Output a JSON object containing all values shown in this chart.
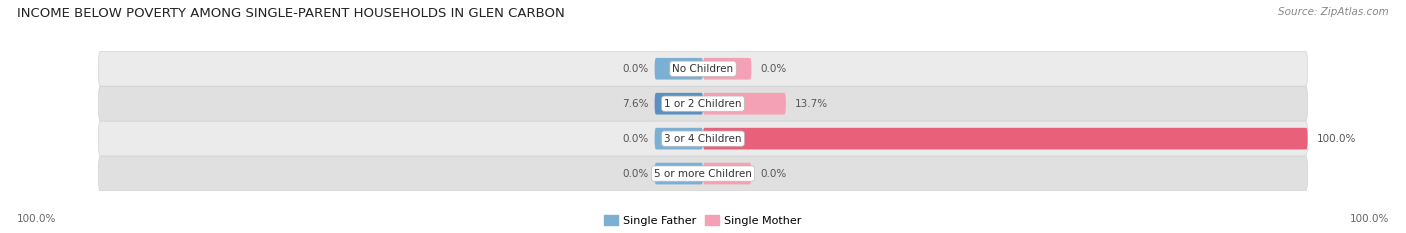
{
  "title": "INCOME BELOW POVERTY AMONG SINGLE-PARENT HOUSEHOLDS IN GLEN CARBON",
  "source": "Source: ZipAtlas.com",
  "categories": [
    "No Children",
    "1 or 2 Children",
    "3 or 4 Children",
    "5 or more Children"
  ],
  "single_father": [
    0.0,
    7.6,
    0.0,
    0.0
  ],
  "single_mother": [
    0.0,
    13.7,
    100.0,
    0.0
  ],
  "father_color": "#7bafd4",
  "mother_color_light": "#f4a0b5",
  "mother_color_dark": "#e8607a",
  "father_color_dark": "#5b90c0",
  "bar_bg_light": "#ebebeb",
  "bar_bg_dark": "#e0e0e0",
  "row_sep_color": "#d0d0d0",
  "title_fontsize": 9.5,
  "source_fontsize": 7.5,
  "val_fontsize": 7.5,
  "cat_fontsize": 7.5,
  "legend_fontsize": 8,
  "axis_label_left": "100.0%",
  "axis_label_right": "100.0%",
  "xlim": 100,
  "legend_father": "Single Father",
  "legend_mother": "Single Mother",
  "background_color": "#ffffff",
  "min_bar_width": 8
}
